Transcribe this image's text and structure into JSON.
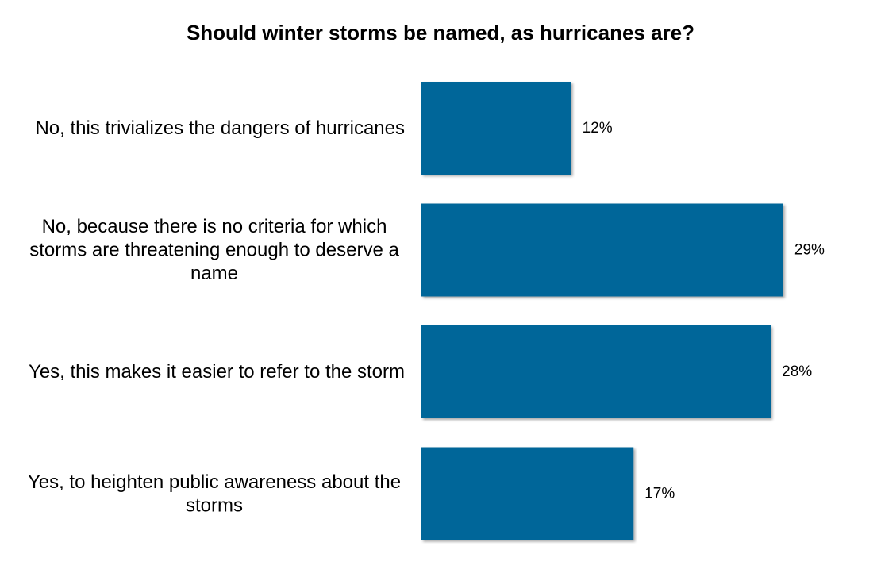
{
  "chart_data": {
    "type": "bar",
    "orientation": "horizontal",
    "title": "Should winter storms be named, as hurricanes are?",
    "categories": [
      "No, this trivializes the dangers of hurricanes",
      "No, because there is no criteria for which storms are threatening enough to deserve a name",
      "Yes, this makes it easier to refer to the storm",
      "Yes, to heighten public awareness about the storms"
    ],
    "values": [
      12,
      29,
      28,
      17
    ],
    "value_labels": [
      "12%",
      "29%",
      "28%",
      "17%"
    ],
    "unit": "%",
    "xlim": [
      0,
      30
    ],
    "grid": false,
    "legend": "none",
    "bar_color": "#006699"
  }
}
